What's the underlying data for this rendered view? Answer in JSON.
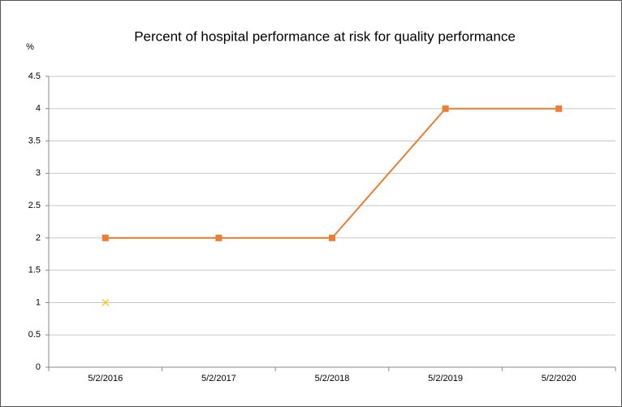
{
  "chart_data": {
    "type": "line",
    "title": "Percent of hospital performance at risk for quality performance",
    "y_axis_label": "%",
    "categories": [
      "5/2/2016",
      "5/2/2017",
      "5/2/2018",
      "5/2/2019",
      "5/2/2020"
    ],
    "series": [
      {
        "color": "#ed7d31",
        "marker": "square",
        "line": true,
        "values": [
          2,
          2,
          2,
          4,
          4
        ]
      },
      {
        "color": "#ffc000",
        "marker": "x",
        "line": false,
        "values": [
          1,
          null,
          null,
          null,
          null
        ]
      }
    ],
    "ylim": [
      0,
      4.5
    ],
    "yticks": [
      0,
      0.5,
      1,
      1.5,
      2,
      2.5,
      3,
      3.5,
      4,
      4.5
    ],
    "grid": true
  }
}
